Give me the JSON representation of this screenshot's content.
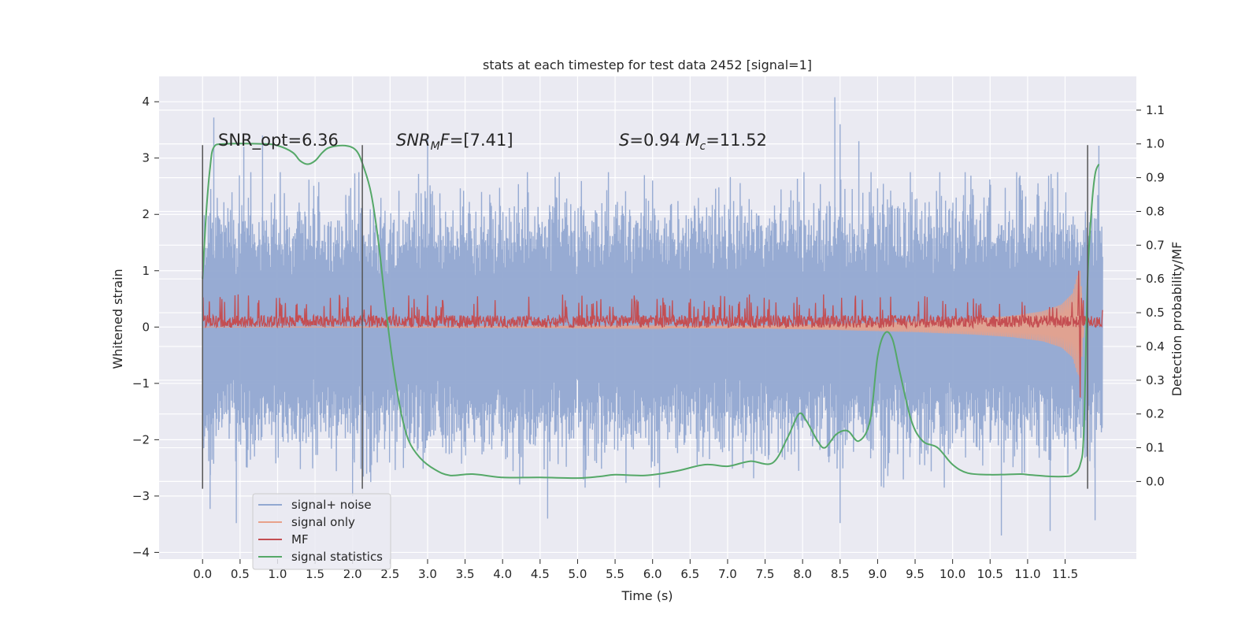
{
  "chart_data": {
    "type": "line",
    "title": "stats at each timestep for test data 2452 [signal=1]",
    "xlabel": "Time (s)",
    "ylabel": "Whitened strain",
    "ylabel_right": "Detection probability/MF",
    "xlim": [
      -0.58,
      12.45
    ],
    "ylim": [
      -4.12,
      4.45
    ],
    "ylim_right": [
      -0.23,
      1.2
    ],
    "x_ticks": [
      0.0,
      0.5,
      1.0,
      1.5,
      2.0,
      2.5,
      3.0,
      3.5,
      4.0,
      4.5,
      5.0,
      5.5,
      6.0,
      6.5,
      7.0,
      7.5,
      8.0,
      8.5,
      9.0,
      9.5,
      10.0,
      10.5,
      11.0,
      11.5
    ],
    "x_tick_labels": [
      "0.0",
      "0.5",
      "1.0",
      "1.5",
      "2.0",
      "2.5",
      "3.0",
      "3.5",
      "4.0",
      "4.5",
      "5.0",
      "5.5",
      "6.0",
      "6.5",
      "7.0",
      "7.5",
      "8.0",
      "8.5",
      "9.0",
      "9.5",
      "10.0",
      "10.5",
      "11.0",
      "11.5"
    ],
    "y_ticks": [
      -4,
      -3,
      -2,
      -1,
      0,
      1,
      2,
      3,
      4
    ],
    "y_tick_labels": [
      "−4",
      "−3",
      "−2",
      "−1",
      "0",
      "1",
      "2",
      "3",
      "4"
    ],
    "y_ticks_right": [
      0.0,
      0.1,
      0.2,
      0.3,
      0.4,
      0.5,
      0.6,
      0.7,
      0.8,
      0.9,
      1.0,
      1.1
    ],
    "y_tick_labels_right": [
      "0.0",
      "0.1",
      "0.2",
      "0.3",
      "0.4",
      "0.5",
      "0.6",
      "0.7",
      "0.8",
      "0.9",
      "1.0",
      "1.1"
    ],
    "grid": true,
    "legend_position": "lower-left",
    "annotations": [
      {
        "text": "SNR_opt=6.36",
        "x": 0.2,
        "y": 3.3
      },
      {
        "text": "SNR_M F=[7.41]",
        "x": 2.6,
        "y": 3.3
      },
      {
        "text": "S=0.94   M_c=11.52",
        "x": 5.6,
        "y": 3.3
      }
    ],
    "vertical_lines": [
      {
        "x": 0.0,
        "y_range": [
          -2.87,
          3.23
        ]
      },
      {
        "x": 2.13,
        "y_range": [
          -2.87,
          3.23
        ]
      },
      {
        "x": 11.8,
        "y_range": [
          -2.87,
          3.23
        ]
      }
    ],
    "series": [
      {
        "name": "signal+ noise",
        "axis": "left",
        "color": "#92a8d1",
        "x_range": [
          0.0,
          12.0
        ],
        "description_stats": {
          "typical_upper": [
            1.4,
            2.8
          ],
          "typical_lower": [
            -1.5,
            -2.8
          ],
          "spikes": [
            {
              "x": 0.15,
              "y": 3.72
            },
            {
              "x": 0.55,
              "y": 3.2
            },
            {
              "x": 0.8,
              "y": 3.4
            },
            {
              "x": 3.0,
              "y": 3.4
            },
            {
              "x": 8.43,
              "y": 4.08
            },
            {
              "x": 8.5,
              "y": 3.6
            },
            {
              "x": 8.75,
              "y": 3.3
            },
            {
              "x": 11.95,
              "y": 3.22
            },
            {
              "x": 0.1,
              "y": -3.23
            },
            {
              "x": 0.45,
              "y": -3.48
            },
            {
              "x": 2.0,
              "y": -3.0
            },
            {
              "x": 4.6,
              "y": -3.4
            },
            {
              "x": 8.5,
              "y": -3.48
            },
            {
              "x": 10.65,
              "y": -3.7
            },
            {
              "x": 11.3,
              "y": -3.62
            },
            {
              "x": 11.9,
              "y": -3.43
            }
          ]
        }
      },
      {
        "name": "signal only",
        "axis": "left",
        "color": "#e8a18a",
        "points": [
          [
            0.0,
            0.0
          ],
          [
            4.0,
            0.01
          ],
          [
            7.5,
            0.03
          ],
          [
            8.5,
            0.06
          ],
          [
            9.5,
            0.1
          ],
          [
            10.3,
            0.15
          ],
          [
            10.8,
            0.2
          ],
          [
            11.2,
            0.28
          ],
          [
            11.45,
            0.4
          ],
          [
            11.6,
            0.6
          ],
          [
            11.66,
            0.9
          ],
          [
            11.7,
            1.0
          ],
          [
            11.73,
            0.5
          ],
          [
            11.75,
            0.0
          ]
        ]
      },
      {
        "name": "MF",
        "axis": "left",
        "color": "#c44e52",
        "baseline": 0.1,
        "x_range": [
          0.0,
          12.0
        ],
        "typical_range": [
          0.0,
          0.3
        ],
        "peaks": [
          {
            "x": 11.68,
            "y": 1.0
          },
          {
            "x": 11.7,
            "y": -1.25
          }
        ]
      },
      {
        "name": "signal statistics",
        "axis": "right",
        "color": "#55a868",
        "points": [
          [
            0.0,
            0.6
          ],
          [
            0.05,
            0.8
          ],
          [
            0.1,
            0.93
          ],
          [
            0.15,
            0.99
          ],
          [
            0.3,
            1.0
          ],
          [
            0.8,
            1.0
          ],
          [
            1.0,
            0.995
          ],
          [
            1.2,
            0.975
          ],
          [
            1.3,
            0.95
          ],
          [
            1.4,
            0.94
          ],
          [
            1.5,
            0.95
          ],
          [
            1.6,
            0.975
          ],
          [
            1.7,
            0.99
          ],
          [
            1.9,
            0.995
          ],
          [
            2.05,
            0.98
          ],
          [
            2.15,
            0.93
          ],
          [
            2.25,
            0.85
          ],
          [
            2.35,
            0.7
          ],
          [
            2.45,
            0.5
          ],
          [
            2.55,
            0.33
          ],
          [
            2.65,
            0.2
          ],
          [
            2.75,
            0.12
          ],
          [
            2.9,
            0.07
          ],
          [
            3.1,
            0.035
          ],
          [
            3.3,
            0.018
          ],
          [
            3.6,
            0.022
          ],
          [
            4.0,
            0.012
          ],
          [
            4.5,
            0.012
          ],
          [
            5.0,
            0.01
          ],
          [
            5.3,
            0.015
          ],
          [
            5.5,
            0.02
          ],
          [
            5.9,
            0.018
          ],
          [
            6.3,
            0.03
          ],
          [
            6.7,
            0.05
          ],
          [
            7.0,
            0.045
          ],
          [
            7.3,
            0.06
          ],
          [
            7.6,
            0.055
          ],
          [
            7.8,
            0.13
          ],
          [
            7.95,
            0.2
          ],
          [
            8.05,
            0.18
          ],
          [
            8.2,
            0.12
          ],
          [
            8.3,
            0.1
          ],
          [
            8.45,
            0.14
          ],
          [
            8.6,
            0.15
          ],
          [
            8.75,
            0.12
          ],
          [
            8.9,
            0.18
          ],
          [
            9.0,
            0.37
          ],
          [
            9.1,
            0.44
          ],
          [
            9.2,
            0.42
          ],
          [
            9.3,
            0.32
          ],
          [
            9.45,
            0.18
          ],
          [
            9.6,
            0.12
          ],
          [
            9.8,
            0.1
          ],
          [
            10.0,
            0.05
          ],
          [
            10.2,
            0.025
          ],
          [
            10.5,
            0.02
          ],
          [
            10.9,
            0.022
          ],
          [
            11.0,
            0.02
          ],
          [
            11.3,
            0.015
          ],
          [
            11.5,
            0.015
          ],
          [
            11.6,
            0.02
          ],
          [
            11.7,
            0.05
          ],
          [
            11.75,
            0.15
          ],
          [
            11.8,
            0.6
          ],
          [
            11.85,
            0.8
          ],
          [
            11.9,
            0.91
          ],
          [
            11.95,
            0.94
          ]
        ]
      }
    ]
  }
}
